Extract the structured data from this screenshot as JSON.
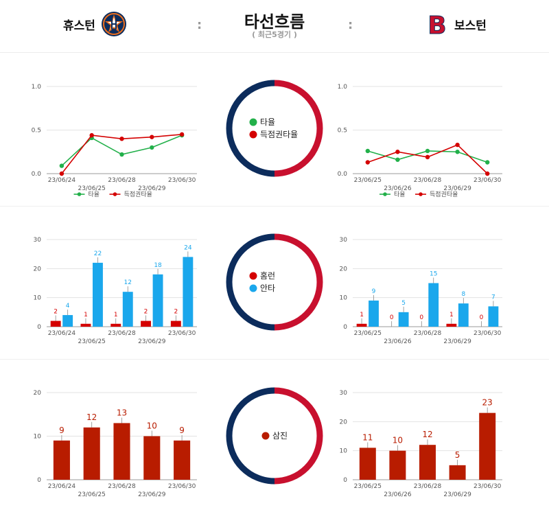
{
  "header": {
    "home_team": "휴스턴",
    "away_team": "보스턴",
    "title": "타선흐름",
    "subtitle": "( 최근5경기 )",
    "colon": ":"
  },
  "colors": {
    "navy": "#0c2c5c",
    "red": "#c8102e",
    "green": "#22b04a",
    "darkred": "#d40000",
    "blue": "#1aa7ec",
    "brick": "#b81c00",
    "astros_orange": "#eb6e1f"
  },
  "circles": [
    {
      "legend": [
        {
          "label": "타율",
          "color": "#22b04a"
        },
        {
          "label": "득점권타율",
          "color": "#d40000"
        }
      ]
    },
    {
      "legend": [
        {
          "label": "홈런",
          "color": "#d40000"
        },
        {
          "label": "안타",
          "color": "#1aa7ec"
        }
      ]
    },
    {
      "legend": [
        {
          "label": "삼진",
          "color": "#b81c00"
        }
      ]
    }
  ],
  "chart_data": [
    {
      "id": "home-avg",
      "type": "line",
      "team": "휴스턴",
      "categories": [
        "23/06/24",
        "23/06/25",
        "23/06/28",
        "23/06/29",
        "23/06/30"
      ],
      "ylim": [
        0,
        1.0
      ],
      "yticks": [
        "0.0",
        "0.5",
        "1.0"
      ],
      "series": [
        {
          "name": "타율",
          "color": "#22b04a",
          "values": [
            0.09,
            0.41,
            0.22,
            0.3,
            0.44
          ]
        },
        {
          "name": "득점권타율",
          "color": "#d40000",
          "values": [
            0.0,
            0.44,
            0.4,
            0.42,
            0.45
          ]
        }
      ],
      "legend": "bottom"
    },
    {
      "id": "away-avg",
      "type": "line",
      "team": "보스턴",
      "categories": [
        "23/06/25",
        "23/06/26",
        "23/06/28",
        "23/06/29",
        "23/06/30"
      ],
      "ylim": [
        0,
        1.0
      ],
      "yticks": [
        "0.0",
        "0.5",
        "1.0"
      ],
      "series": [
        {
          "name": "타율",
          "color": "#22b04a",
          "values": [
            0.26,
            0.16,
            0.26,
            0.25,
            0.13
          ]
        },
        {
          "name": "득점권타율",
          "color": "#d40000",
          "values": [
            0.13,
            0.25,
            0.19,
            0.33,
            0.0
          ]
        }
      ],
      "legend": "bottom"
    },
    {
      "id": "home-hits",
      "type": "bar",
      "team": "휴스턴",
      "categories": [
        "23/06/24",
        "23/06/25",
        "23/06/28",
        "23/06/29",
        "23/06/30"
      ],
      "ylim": [
        0,
        30
      ],
      "yticks": [
        "0",
        "10",
        "20",
        "30"
      ],
      "series": [
        {
          "name": "홈런",
          "color": "#d40000",
          "values": [
            2,
            1,
            1,
            2,
            2
          ]
        },
        {
          "name": "안타",
          "color": "#1aa7ec",
          "values": [
            4,
            22,
            12,
            18,
            24
          ]
        }
      ]
    },
    {
      "id": "away-hits",
      "type": "bar",
      "team": "보스턴",
      "categories": [
        "23/06/25",
        "23/06/26",
        "23/06/28",
        "23/06/29",
        "23/06/30"
      ],
      "ylim": [
        0,
        30
      ],
      "yticks": [
        "0",
        "10",
        "20",
        "30"
      ],
      "series": [
        {
          "name": "홈런",
          "color": "#d40000",
          "values": [
            1,
            0,
            0,
            1,
            0
          ]
        },
        {
          "name": "안타",
          "color": "#1aa7ec",
          "values": [
            9,
            5,
            15,
            8,
            7
          ]
        }
      ]
    },
    {
      "id": "home-so",
      "type": "bar",
      "team": "휴스턴",
      "categories": [
        "23/06/24",
        "23/06/25",
        "23/06/28",
        "23/06/29",
        "23/06/30"
      ],
      "ylim": [
        0,
        20
      ],
      "yticks": [
        "0",
        "10",
        "20"
      ],
      "series": [
        {
          "name": "삼진",
          "color": "#b81c00",
          "values": [
            9,
            12,
            13,
            10,
            9
          ]
        }
      ]
    },
    {
      "id": "away-so",
      "type": "bar",
      "team": "보스턴",
      "categories": [
        "23/06/25",
        "23/06/26",
        "23/06/28",
        "23/06/29",
        "23/06/30"
      ],
      "ylim": [
        0,
        30
      ],
      "yticks": [
        "0",
        "10",
        "20",
        "30"
      ],
      "series": [
        {
          "name": "삼진",
          "color": "#b81c00",
          "values": [
            11,
            10,
            12,
            5,
            23
          ]
        }
      ]
    }
  ]
}
